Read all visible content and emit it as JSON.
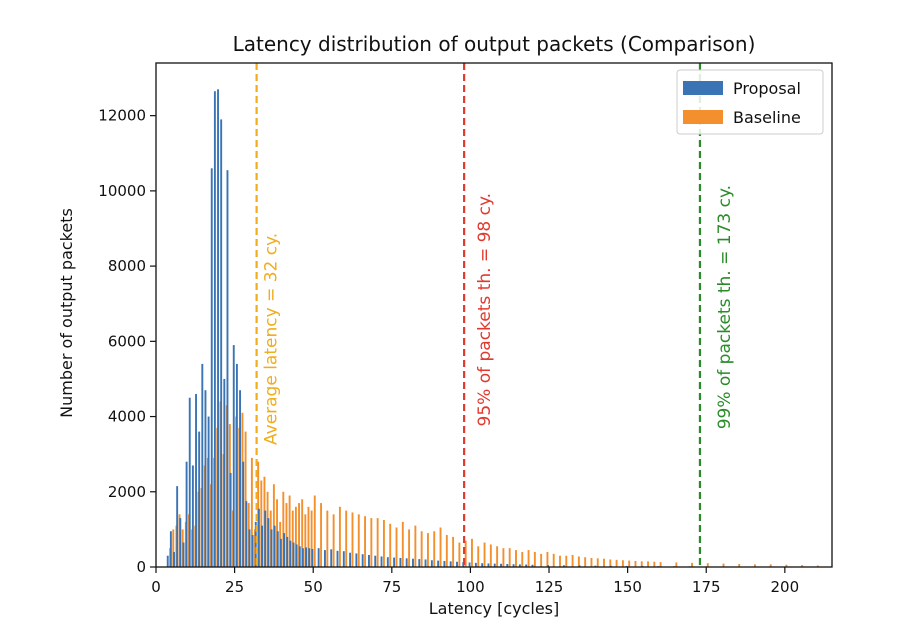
{
  "chart_data": {
    "type": "bar",
    "title": "Latency distribution of output packets (Comparison)",
    "xlabel": "Latency [cycles]",
    "ylabel": "Number of output packets",
    "xlim": [
      0,
      215
    ],
    "ylim": [
      0,
      13400
    ],
    "x_ticks": [
      0,
      25,
      50,
      75,
      100,
      125,
      150,
      175,
      200
    ],
    "y_ticks": [
      0,
      2000,
      4000,
      6000,
      8000,
      10000,
      12000
    ],
    "grid": false,
    "legend": {
      "placement": "top-right"
    },
    "colors": {
      "proposal": "#3a74b4",
      "baseline": "#f38f2c",
      "average": "#f0ad1e",
      "p95": "#e03a2f",
      "p99": "#2a8c28"
    },
    "series": [
      {
        "name": "Proposal",
        "x": [
          4,
          5,
          6,
          7,
          8,
          9,
          10,
          11,
          12,
          13,
          14,
          15,
          16,
          17,
          18,
          19,
          20,
          21,
          22,
          23,
          24,
          25,
          26,
          27,
          28,
          29,
          30,
          31,
          32,
          33,
          34,
          35,
          36,
          37,
          38,
          39,
          40,
          41,
          42,
          43,
          44,
          45,
          46,
          47,
          48,
          49,
          50,
          52,
          54,
          56,
          58,
          60,
          62,
          64,
          66,
          68,
          70,
          72,
          74,
          76,
          78,
          80,
          82,
          84,
          86,
          88,
          90,
          92,
          94,
          96,
          98,
          100,
          102,
          104,
          106,
          108,
          110,
          112,
          114,
          116,
          118,
          120,
          125,
          130,
          135,
          140,
          145,
          150,
          155,
          160,
          165,
          170,
          175,
          180,
          185,
          190,
          195,
          200,
          205,
          210
        ],
        "values": [
          300,
          950,
          400,
          2150,
          1300,
          650,
          2800,
          4500,
          2700,
          4600,
          3600,
          5400,
          4700,
          4000,
          10600,
          12650,
          12700,
          11900,
          5000,
          10550,
          2500,
          5900,
          5400,
          4700,
          2800,
          1750,
          1000,
          850,
          1200,
          1550,
          1100,
          1500,
          1300,
          1000,
          1100,
          950,
          750,
          900,
          800,
          700,
          650,
          600,
          550,
          500,
          520,
          500,
          480,
          500,
          450,
          470,
          430,
          420,
          380,
          360,
          340,
          320,
          300,
          280,
          260,
          250,
          240,
          230,
          220,
          210,
          200,
          180,
          170,
          160,
          150,
          140,
          130,
          120,
          110,
          100,
          95,
          90,
          85,
          80,
          75,
          70,
          65,
          60,
          50,
          45,
          40,
          35,
          30,
          28,
          25,
          22,
          20,
          18,
          15,
          14,
          12,
          10,
          9,
          8,
          7,
          6
        ]
      },
      {
        "name": "Baseline",
        "x": [
          4,
          5,
          6,
          7,
          8,
          9,
          10,
          11,
          12,
          13,
          14,
          15,
          16,
          17,
          18,
          19,
          20,
          21,
          22,
          23,
          24,
          25,
          26,
          27,
          28,
          29,
          30,
          31,
          32,
          33,
          34,
          35,
          36,
          37,
          38,
          39,
          40,
          41,
          42,
          43,
          44,
          45,
          46,
          47,
          48,
          49,
          50,
          52,
          54,
          56,
          58,
          60,
          62,
          64,
          66,
          68,
          70,
          72,
          74,
          76,
          78,
          80,
          82,
          84,
          86,
          88,
          90,
          92,
          94,
          96,
          98,
          100,
          102,
          104,
          106,
          108,
          110,
          112,
          114,
          116,
          118,
          120,
          122,
          124,
          126,
          128,
          130,
          132,
          134,
          136,
          138,
          140,
          142,
          144,
          146,
          148,
          150,
          152,
          154,
          156,
          158,
          160,
          165,
          170,
          175,
          180,
          185,
          190,
          195,
          200,
          205,
          210
        ],
        "values": [
          500,
          1000,
          1100,
          1400,
          1000,
          1200,
          1400,
          1000,
          1100,
          2000,
          2100,
          2700,
          2900,
          2200,
          2900,
          3700,
          4400,
          3000,
          4300,
          3800,
          1500,
          4000,
          3700,
          4100,
          3600,
          1700,
          2900,
          1000,
          2800,
          2300,
          2400,
          2000,
          1500,
          2200,
          1800,
          1200,
          2000,
          1700,
          1900,
          1500,
          1600,
          1700,
          1800,
          1400,
          1600,
          1500,
          1900,
          1700,
          1500,
          1400,
          1600,
          1500,
          1450,
          1400,
          1350,
          1300,
          1300,
          1250,
          1150,
          1050,
          1200,
          1000,
          1100,
          950,
          900,
          950,
          1050,
          850,
          800,
          650,
          700,
          750,
          550,
          650,
          600,
          550,
          500,
          500,
          450,
          400,
          450,
          400,
          350,
          400,
          350,
          300,
          300,
          320,
          280,
          260,
          240,
          230,
          220,
          200,
          190,
          180,
          170,
          160,
          150,
          150,
          140,
          130,
          120,
          110,
          100,
          90,
          80,
          70,
          70,
          60,
          50,
          40
        ]
      }
    ],
    "annotations": [
      {
        "x": 32,
        "label": "Average latency = 32 cy."
      },
      {
        "x": 98,
        "label": "95% of packets th. = 98 cy."
      },
      {
        "x": 173,
        "label": "99% of packets th. = 173 cy."
      }
    ]
  }
}
